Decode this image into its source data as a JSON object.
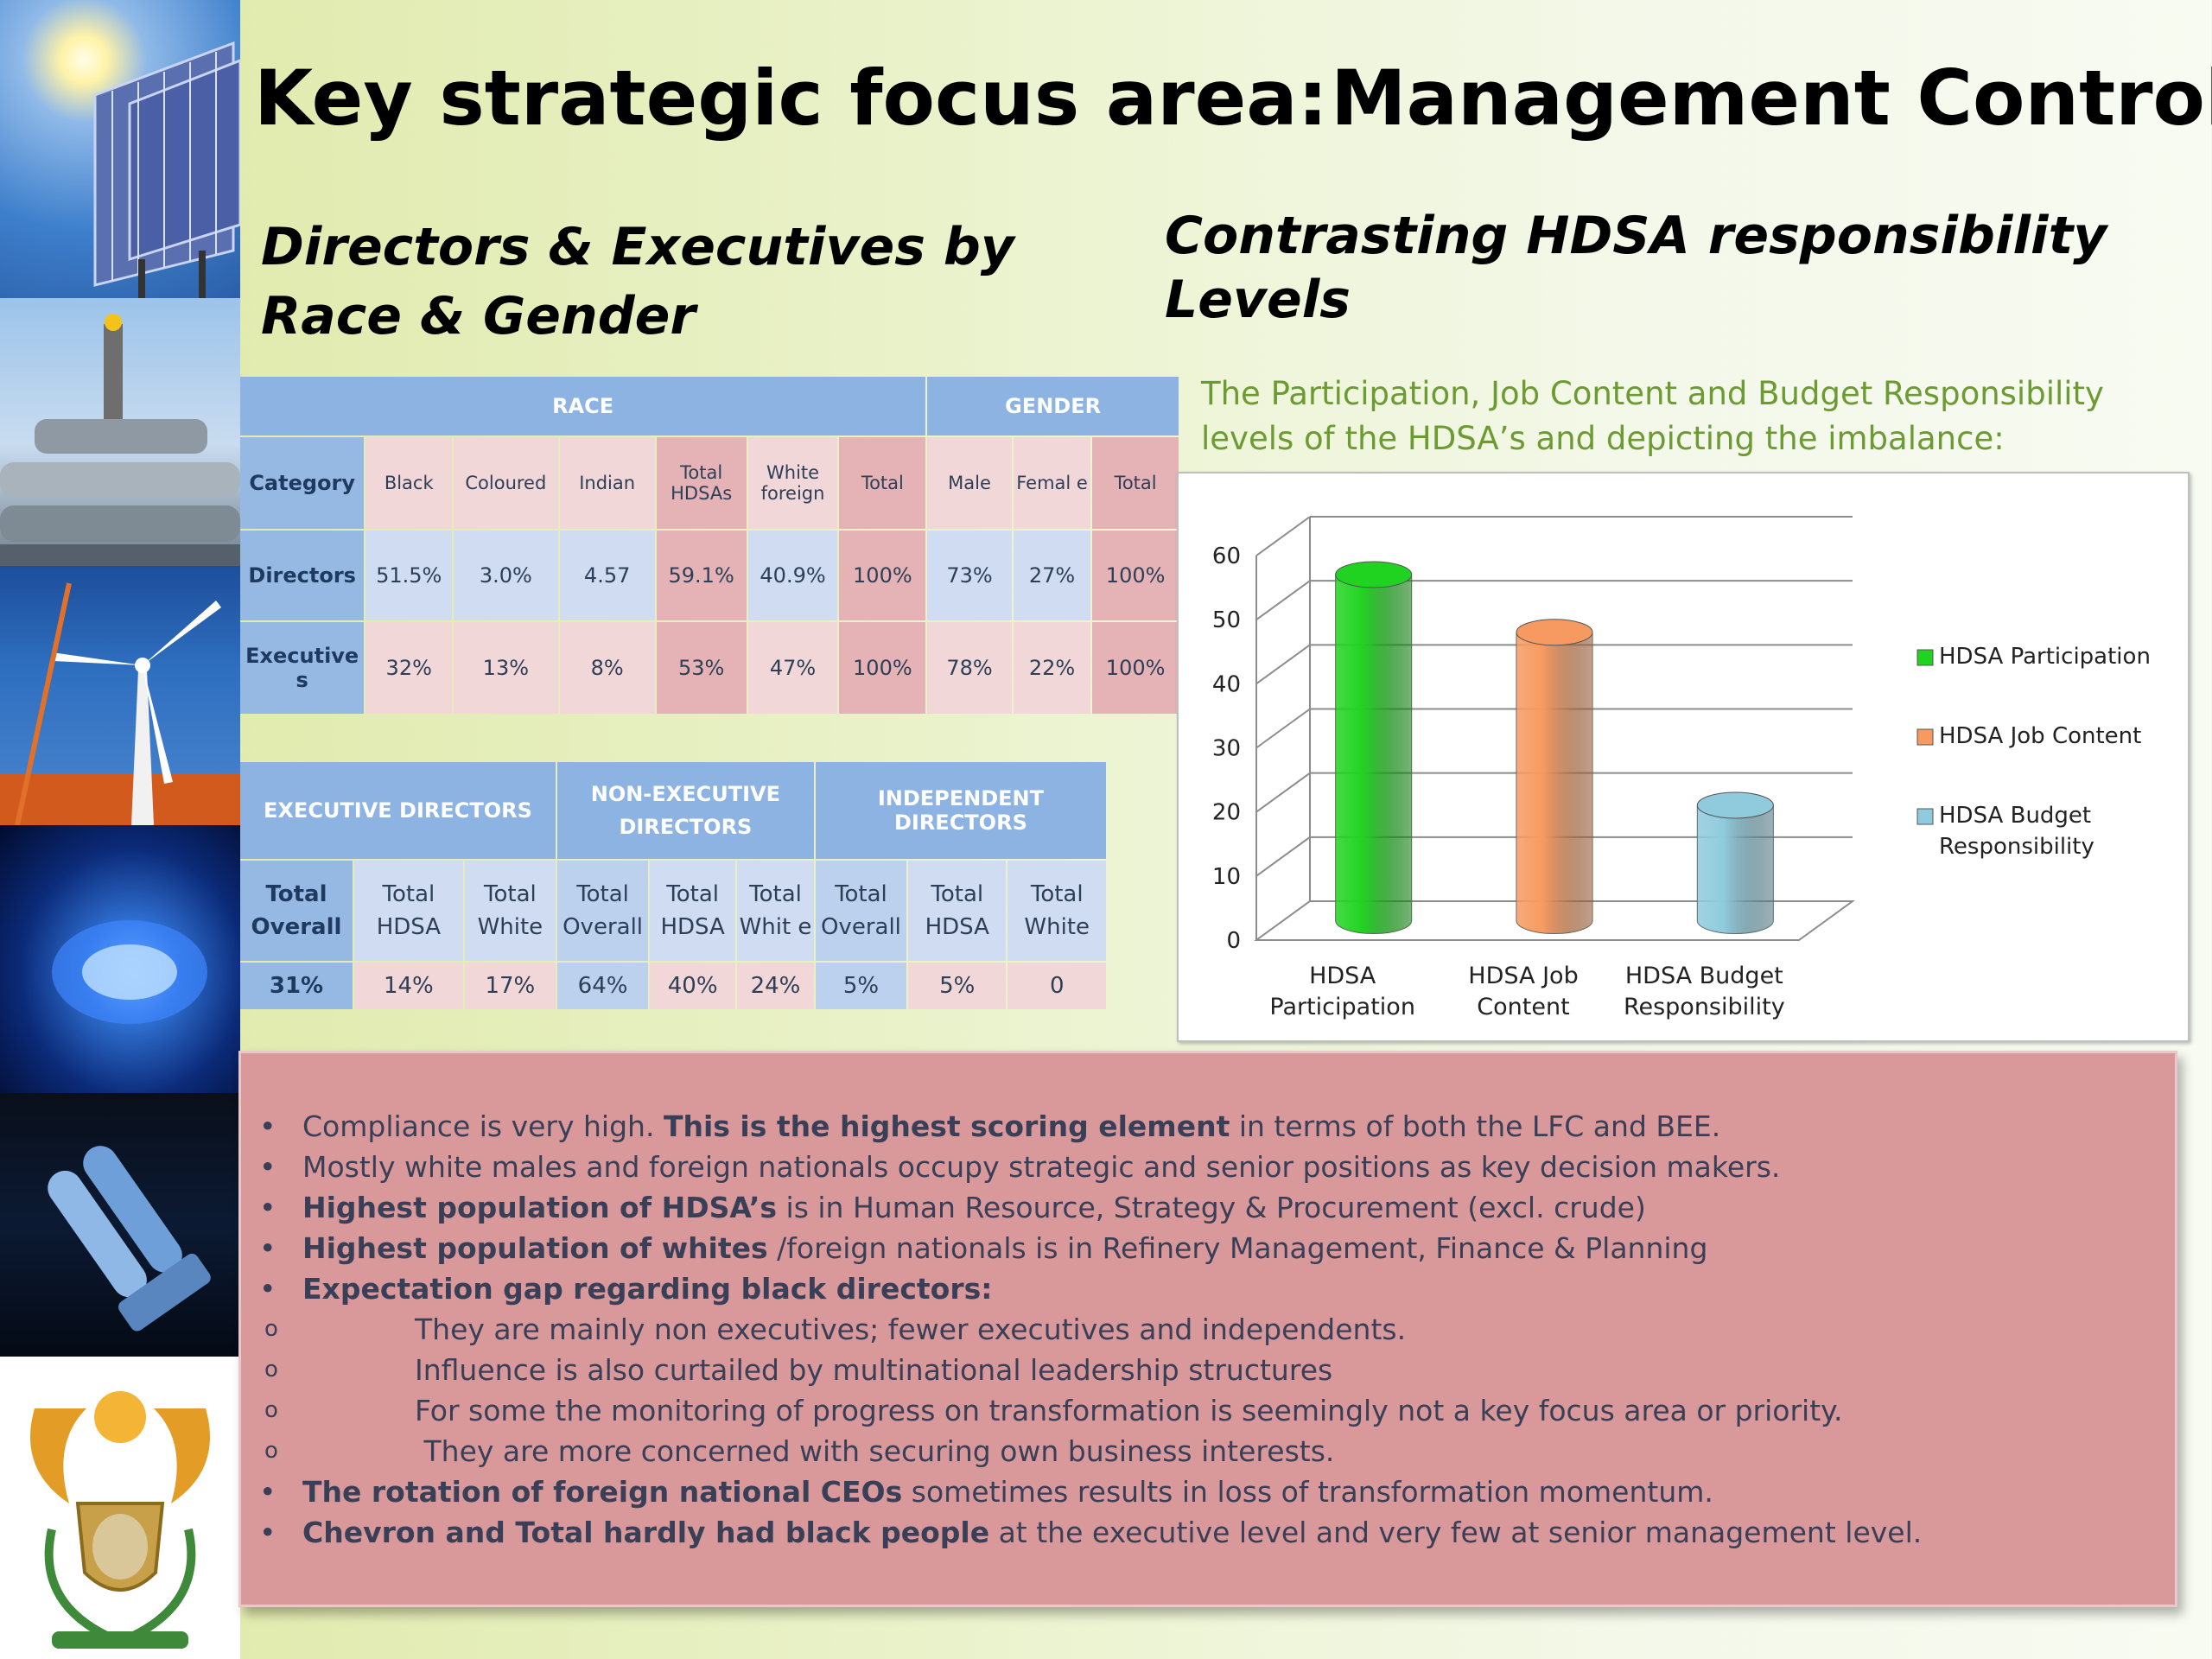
{
  "header": {
    "title_left": "Key strategic focus area:",
    "title_right": "Management Control",
    "subtitle_left": "Directors & Executives by Race & Gender",
    "subtitle_right": "Contrasting HDSA responsibility Levels"
  },
  "race_table": {
    "group_race": "RACE",
    "group_gender": "GENDER",
    "columns": [
      "Category",
      "Black",
      "Coloured",
      "Indian",
      "Total HDSAs",
      "White foreign",
      "Total",
      "Male",
      "Femal e",
      "Total"
    ],
    "rows": [
      [
        "Directors",
        "51.5%",
        "3.0%",
        "4.57",
        "59.1%",
        "40.9%",
        "100%",
        "73%",
        "27%",
        "100%"
      ],
      [
        "Executive s",
        "32%",
        "13%",
        "8%",
        "53%",
        "47%",
        "100%",
        "78%",
        "22%",
        "100%"
      ]
    ]
  },
  "directors_table": {
    "groups": [
      "EXECUTIVE DIRECTORS",
      "NON-EXECUTIVE DIRECTORS",
      "INDEPENDENT DIRECTORS"
    ],
    "columns": [
      "Total Overall",
      "Total HDSA",
      "Total White",
      "Total Overall",
      "Total HDSA",
      "Total Whit e",
      "Total Overall",
      "Total HDSA",
      "Total White"
    ],
    "values": [
      "31%",
      "14%",
      "17%",
      "64%",
      "40%",
      "24%",
      "5%",
      "5%",
      "0"
    ]
  },
  "chart_description": "The Participation, Job Content and Budget Responsibility levels of the HDSA’s and depicting the imbalance:",
  "chart_data": {
    "type": "bar",
    "title": "",
    "categories": [
      "HDSA Participation",
      "HDSA Job Content",
      "HDSA Budget Responsibility"
    ],
    "values": [
      54,
      45,
      18
    ],
    "ylim": [
      0,
      60
    ],
    "yticks": [
      "0",
      "10",
      "20",
      "30",
      "40",
      "50",
      "60"
    ],
    "category_labels": [
      [
        "HDSA",
        "Participation"
      ],
      [
        "HDSA Job",
        "Content"
      ],
      [
        "HDSA Budget",
        "Responsibility"
      ]
    ],
    "legend": [
      {
        "label": [
          "HDSA Participation"
        ],
        "color": "#21d321"
      },
      {
        "label": [
          "HDSA Job Content"
        ],
        "color": "#f79a61"
      },
      {
        "label": [
          "HDSA Budget",
          "Responsibility"
        ],
        "color": "#8fcbdc"
      }
    ],
    "colors": [
      "#21d321",
      "#f79a61",
      "#8fcbdc"
    ],
    "grid": true,
    "legend_position": "right"
  },
  "notes": {
    "bullets": [
      {
        "bold": "",
        "pre": "Compliance is very high. ",
        "b2": "This is the highest scoring element",
        "rest": " in terms of both the LFC and BEE."
      },
      {
        "bold": "",
        "pre": "Mostly white males and foreign nationals occupy strategic and senior positions as key decision makers.",
        "b2": "",
        "rest": ""
      },
      {
        "bold": "Highest population of HDSA’s",
        "pre": "",
        "b2": "",
        "rest": " is in Human Resource, Strategy & Procurement (excl. crude)"
      },
      {
        "bold": "Highest population of whites",
        "pre": "",
        "b2": "",
        "rest": " /foreign nationals is in Refinery Management, Finance & Planning"
      },
      {
        "bold": "Expectation gap regarding black directors:",
        "pre": "",
        "b2": "",
        "rest": ""
      }
    ],
    "sub_bullets": [
      "They are mainly non executives; fewer executives and independents.",
      "Influence is also curtailed by multinational leadership structures",
      "For some the monitoring of progress on transformation is seemingly not a key focus area or priority.",
      " They are more concerned with securing own business interests."
    ],
    "bullets_end": [
      {
        "bold": "The rotation of foreign national CEOs",
        "rest": " sometimes results in loss of transformation momentum."
      },
      {
        "bold": "Chevron and Total hardly had black people",
        "rest": " at the executive level and very few at senior management level."
      }
    ],
    "bullet_char": "•",
    "sub_bullet_char": "o"
  }
}
